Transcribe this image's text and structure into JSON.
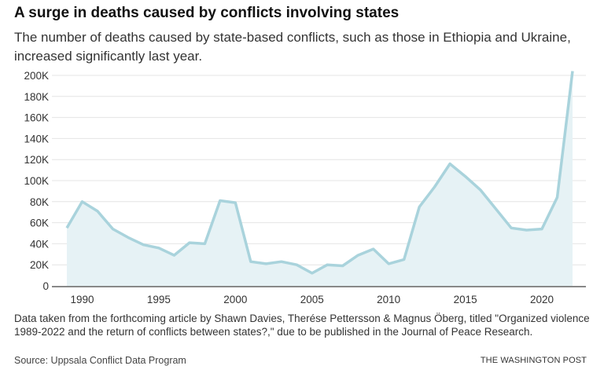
{
  "title": "A surge in deaths caused by conflicts involving states",
  "subtitle": "The number of deaths caused by state-based conflicts, such as those in Ethiopia and Ukraine, increased significantly last year.",
  "note": "Data taken from the forthcoming article by Shawn Davies, Therése Pettersson & Magnus Öberg, titled \"Organized violence 1989-2022 and the return of conflicts between states?,\" due to be published in the Journal of Peace Research.",
  "source": "Source: Uppsala Conflict Data Program",
  "credit": "THE WASHINGTON POST",
  "colors": {
    "line": "#a9d3dc",
    "fill": "#e6f2f5",
    "grid": "#e4e4e4",
    "axis": "#888888"
  },
  "chart_data": {
    "type": "area",
    "title": "A surge in deaths caused by conflicts involving states",
    "xlabel": "",
    "ylabel": "",
    "x": [
      1989,
      1990,
      1991,
      1992,
      1993,
      1994,
      1995,
      1996,
      1997,
      1998,
      1999,
      2000,
      2001,
      2002,
      2003,
      2004,
      2005,
      2006,
      2007,
      2008,
      2009,
      2010,
      2011,
      2012,
      2013,
      2014,
      2015,
      2016,
      2017,
      2018,
      2019,
      2020,
      2021,
      2022
    ],
    "values": [
      55000,
      80000,
      71000,
      54000,
      46000,
      39000,
      36000,
      29000,
      41000,
      40000,
      81000,
      79000,
      23000,
      21000,
      23000,
      20000,
      12000,
      20000,
      19000,
      29000,
      35000,
      21000,
      25000,
      75000,
      94000,
      116000,
      104000,
      91000,
      73000,
      55000,
      53000,
      54000,
      84000,
      204000
    ],
    "xlim": [
      1989,
      2022
    ],
    "ylim": [
      0,
      200000
    ],
    "x_ticks": [
      {
        "v": 1990,
        "label": "1990"
      },
      {
        "v": 1995,
        "label": "1995"
      },
      {
        "v": 2000,
        "label": "2000"
      },
      {
        "v": 2005,
        "label": "2005"
      },
      {
        "v": 2010,
        "label": "2010"
      },
      {
        "v": 2015,
        "label": "2015"
      },
      {
        "v": 2020,
        "label": "2020"
      }
    ],
    "y_ticks": [
      {
        "v": 0,
        "label": "0"
      },
      {
        "v": 20000,
        "label": "20K"
      },
      {
        "v": 40000,
        "label": "40K"
      },
      {
        "v": 60000,
        "label": "60K"
      },
      {
        "v": 80000,
        "label": "80K"
      },
      {
        "v": 100000,
        "label": "100K"
      },
      {
        "v": 120000,
        "label": "120K"
      },
      {
        "v": 140000,
        "label": "140K"
      },
      {
        "v": 160000,
        "label": "160K"
      },
      {
        "v": 180000,
        "label": "180K"
      },
      {
        "v": 200000,
        "label": "200K"
      }
    ],
    "grid": true
  }
}
